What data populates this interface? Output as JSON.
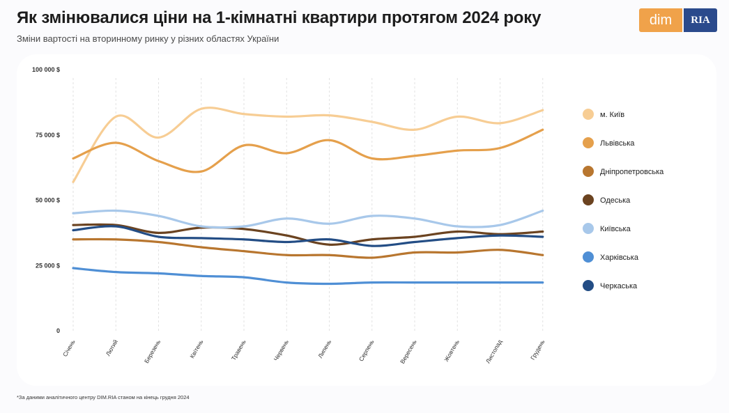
{
  "header": {
    "title": "Як змінювалися ціни на 1-кімнатні квартири протягом 2024 року",
    "subtitle": "Зміни вартості на вторинному ринку у різних областях України"
  },
  "logo": {
    "dim_text": "dim",
    "ria_text": "RIA"
  },
  "footnote": "*За даними аналітичного центру DIM.RIA станом на кінець грудня 2024",
  "chart_data": {
    "type": "line",
    "title": "",
    "xlabel": "",
    "ylabel": "",
    "ylim": [
      0,
      100000
    ],
    "grid": "vertical-dashed",
    "legend_position": "right",
    "categories": [
      "Січень",
      "Лютий",
      "Березень",
      "Квітень",
      "Травень",
      "Червень",
      "Липень",
      "Серпень",
      "Вересень",
      "Жовтень",
      "Листопад",
      "Грудень"
    ],
    "y_ticks": [
      {
        "value": 0,
        "label": "0"
      },
      {
        "value": 25000,
        "label": "25 000 $"
      },
      {
        "value": 50000,
        "label": "50 000 $"
      },
      {
        "value": 75000,
        "label": "75 000 $"
      },
      {
        "value": 100000,
        "label": "100 000 $"
      }
    ],
    "series": [
      {
        "name": "м. Київ",
        "color": "#f7cd94",
        "values": [
          57000,
          82000,
          74000,
          85000,
          83000,
          82000,
          82500,
          80000,
          77000,
          82000,
          79500,
          84500
        ]
      },
      {
        "name": "Львівська",
        "color": "#e5a04c",
        "values": [
          66000,
          72000,
          65000,
          61000,
          71000,
          68000,
          73000,
          66000,
          67000,
          69000,
          70000,
          77000
        ]
      },
      {
        "name": "Дніпропетровська",
        "color": "#b8762f",
        "values": [
          35000,
          35000,
          34000,
          32000,
          30500,
          29000,
          29000,
          28000,
          30000,
          30000,
          31000,
          29000
        ]
      },
      {
        "name": "Одеська",
        "color": "#6b4320",
        "values": [
          40500,
          40500,
          37500,
          39500,
          39000,
          36500,
          33000,
          35000,
          36000,
          38000,
          37000,
          38000
        ]
      },
      {
        "name": "Київська",
        "color": "#a8c8ea",
        "values": [
          45000,
          46000,
          44000,
          40000,
          40000,
          43000,
          41000,
          44000,
          43000,
          40000,
          40500,
          46000
        ]
      },
      {
        "name": "Харківська",
        "color": "#4f8fd5",
        "values": [
          24000,
          22500,
          22000,
          21000,
          20500,
          18500,
          18000,
          18500,
          18500,
          18500,
          18500,
          18500
        ]
      },
      {
        "name": "Черкаська",
        "color": "#234d85",
        "values": [
          38500,
          40000,
          36000,
          35500,
          35000,
          34000,
          35000,
          32500,
          34000,
          35500,
          36500,
          36000
        ]
      }
    ]
  }
}
